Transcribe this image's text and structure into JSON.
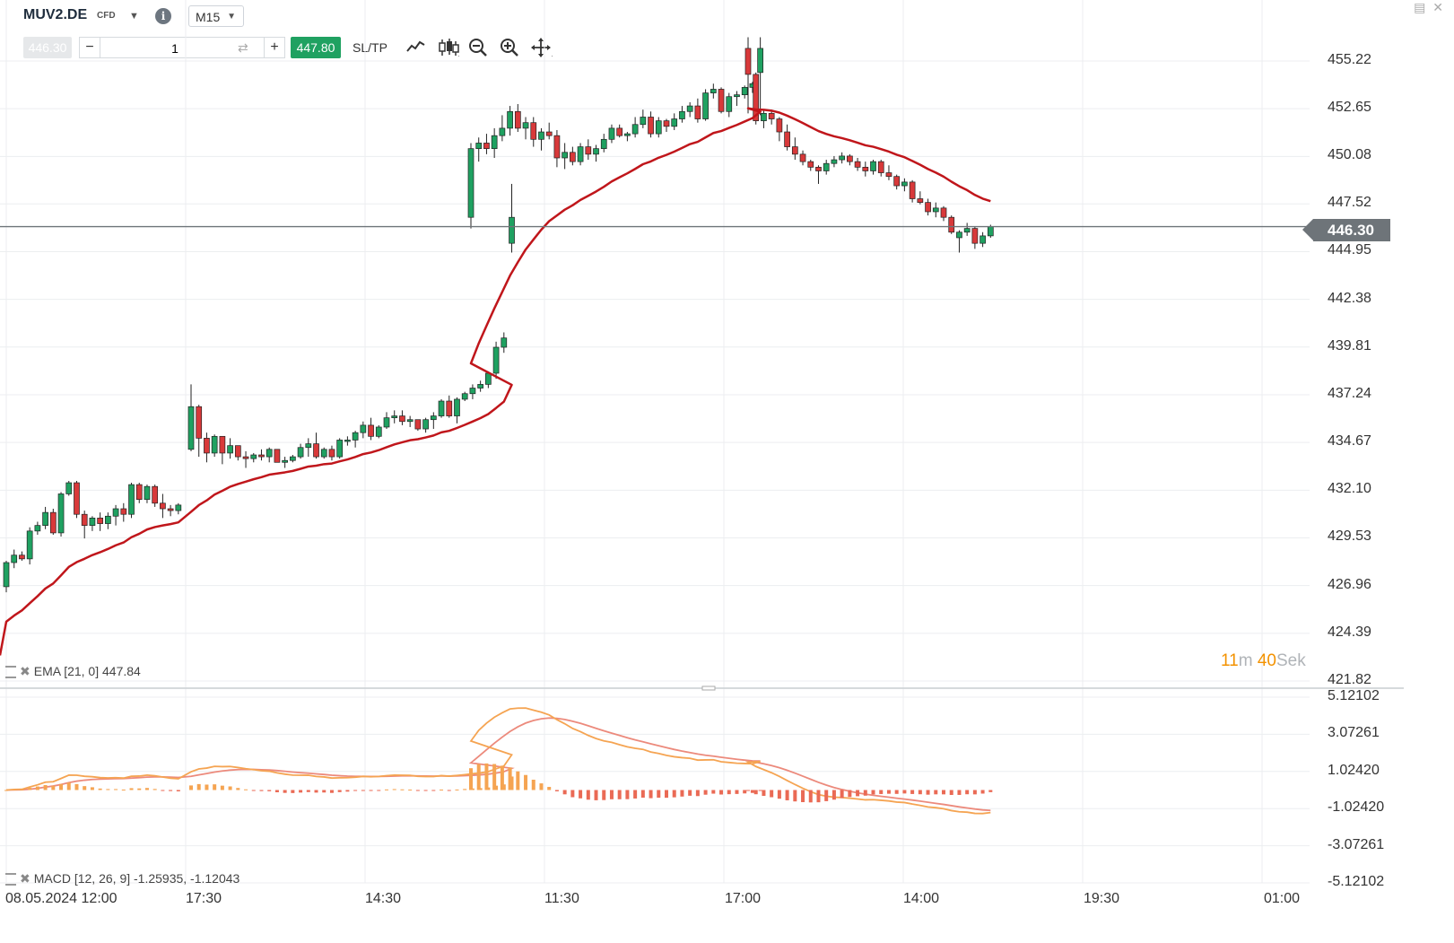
{
  "header": {
    "symbol": "MUV2.DE",
    "instrument_type": "CFD",
    "info_icon_text": "i",
    "timeframe": "M15"
  },
  "order": {
    "sell_price": "446.30",
    "quantity": "1",
    "buy_price": "447.80",
    "sltp_label": "SL/TP"
  },
  "toolbar_icons": [
    "line-chart-icon",
    "candlestick-icon",
    "zoom-out-icon",
    "zoom-in-icon",
    "pan-move-icon"
  ],
  "window_icons": [
    "minimize-icon",
    "close-icon"
  ],
  "colors": {
    "bull": "#1fa161",
    "bear": "#d8393a",
    "ema": "#c0161b",
    "macd_line": "#f5a452",
    "signal_line": "#ec8a7c",
    "hist_pos": "#f5a452",
    "hist_neg": "#ea6a55",
    "current_price": "#6e7479",
    "timer_number": "#f39200"
  },
  "main_panel": {
    "current_price": "446.30",
    "y_axis_ticks": [
      "455.22",
      "452.65",
      "450.08",
      "447.52",
      "444.95",
      "442.38",
      "439.81",
      "437.24",
      "434.67",
      "432.10",
      "429.53",
      "426.96",
      "424.39",
      "421.82"
    ],
    "indicator_label": "EMA [21, 0] 447.84",
    "timer": {
      "minutes": "11",
      "minutes_unit": "m",
      "seconds": "40",
      "seconds_unit": "Sek"
    }
  },
  "macd_panel": {
    "indicator_label": "MACD [12, 26, 9] -1.25935, -1.12043",
    "y_axis_ticks": [
      "5.12102",
      "3.07261",
      "1.02420",
      "-1.02420",
      "-3.07261",
      "-5.12102"
    ]
  },
  "x_axis_labels": [
    "08.05.2024 12:00",
    "17:30",
    "14:30",
    "11:30",
    "17:00",
    "14:00",
    "19:30",
    "01:00"
  ],
  "chart_data": {
    "type": "candlestick",
    "symbol": "MUV2.DE",
    "timeframe": "M15",
    "ylim": [
      421.82,
      456.5
    ],
    "candles_ohlc": [
      [
        426.9,
        428.3,
        426.6,
        428.2
      ],
      [
        428.2,
        428.9,
        427.9,
        428.6
      ],
      [
        428.6,
        428.8,
        428.3,
        428.4
      ],
      [
        428.4,
        430.1,
        428.1,
        429.9
      ],
      [
        429.9,
        430.4,
        429.7,
        430.2
      ],
      [
        430.2,
        431.2,
        430.0,
        430.9
      ],
      [
        430.9,
        431.1,
        429.7,
        429.8
      ],
      [
        429.8,
        432.0,
        429.6,
        431.9
      ],
      [
        431.9,
        432.6,
        431.8,
        432.5
      ],
      [
        432.5,
        432.6,
        430.6,
        430.8
      ],
      [
        430.8,
        431.0,
        429.5,
        430.2
      ],
      [
        430.2,
        430.7,
        429.9,
        430.6
      ],
      [
        430.6,
        430.9,
        429.9,
        430.3
      ],
      [
        430.3,
        430.9,
        430.0,
        430.7
      ],
      [
        430.7,
        431.3,
        430.2,
        431.1
      ],
      [
        431.1,
        431.4,
        430.4,
        430.8
      ],
      [
        430.8,
        432.5,
        430.6,
        432.4
      ],
      [
        432.4,
        432.5,
        431.4,
        431.6
      ],
      [
        431.6,
        432.4,
        431.4,
        432.3
      ],
      [
        432.3,
        432.4,
        431.2,
        431.4
      ],
      [
        431.4,
        431.9,
        430.6,
        431.1
      ],
      [
        431.1,
        431.3,
        430.7,
        431.0
      ],
      [
        431.0,
        431.4,
        430.8,
        431.3
      ],
      [
        434.3,
        437.8,
        434.2,
        436.6
      ],
      [
        436.6,
        436.7,
        433.9,
        434.9
      ],
      [
        434.9,
        435.2,
        433.6,
        434.1
      ],
      [
        434.1,
        435.1,
        433.9,
        435.0
      ],
      [
        435.0,
        435.0,
        433.5,
        434.1
      ],
      [
        434.1,
        434.9,
        433.8,
        434.5
      ],
      [
        434.5,
        434.5,
        433.7,
        433.9
      ],
      [
        433.9,
        434.2,
        433.3,
        433.8
      ],
      [
        433.8,
        434.1,
        433.6,
        434.0
      ],
      [
        434.0,
        434.3,
        433.7,
        433.9
      ],
      [
        433.9,
        434.4,
        433.6,
        434.3
      ],
      [
        434.3,
        434.2,
        433.7,
        433.6
      ],
      [
        433.6,
        433.9,
        433.3,
        433.7
      ],
      [
        433.7,
        434.0,
        433.6,
        433.9
      ],
      [
        433.9,
        434.6,
        433.8,
        434.4
      ],
      [
        434.4,
        434.9,
        433.9,
        434.6
      ],
      [
        434.6,
        435.2,
        433.8,
        433.9
      ],
      [
        433.9,
        434.4,
        433.8,
        434.3
      ],
      [
        434.3,
        434.5,
        433.7,
        433.9
      ],
      [
        433.9,
        434.9,
        433.8,
        434.8
      ],
      [
        434.8,
        435.0,
        434.5,
        434.8
      ],
      [
        434.8,
        435.3,
        434.4,
        435.2
      ],
      [
        435.2,
        435.8,
        434.9,
        435.6
      ],
      [
        435.6,
        436.0,
        434.8,
        435.0
      ],
      [
        435.0,
        435.6,
        434.9,
        435.5
      ],
      [
        435.5,
        436.3,
        435.4,
        436.0
      ],
      [
        436.0,
        436.4,
        435.7,
        436.1
      ],
      [
        436.1,
        436.4,
        435.6,
        435.8
      ],
      [
        435.8,
        436.1,
        435.5,
        435.9
      ],
      [
        435.9,
        435.9,
        435.3,
        435.4
      ],
      [
        435.4,
        436.0,
        435.2,
        435.9
      ],
      [
        435.9,
        436.3,
        435.4,
        436.1
      ],
      [
        436.1,
        437.0,
        436.0,
        436.9
      ],
      [
        436.9,
        437.2,
        436.0,
        436.1
      ],
      [
        436.1,
        437.1,
        435.7,
        437.0
      ],
      [
        437.0,
        437.4,
        436.9,
        437.3
      ],
      [
        437.3,
        437.8,
        437.0,
        437.6
      ],
      [
        437.6,
        438.0,
        437.4,
        437.8
      ],
      [
        437.8,
        438.5,
        437.6,
        438.4
      ],
      [
        438.4,
        440.1,
        438.1,
        439.8
      ],
      [
        439.8,
        440.6,
        439.5,
        440.3
      ],
      [
        445.4,
        448.6,
        444.9,
        446.8
      ],
      [
        446.8,
        450.8,
        446.2,
        450.5
      ],
      [
        450.5,
        451.1,
        449.8,
        450.8
      ],
      [
        450.8,
        451.3,
        450.2,
        450.5
      ],
      [
        450.5,
        451.6,
        450.0,
        451.2
      ],
      [
        451.2,
        452.3,
        450.9,
        451.6
      ],
      [
        451.6,
        452.8,
        451.2,
        452.5
      ],
      [
        452.5,
        452.9,
        451.4,
        451.6
      ],
      [
        451.6,
        452.2,
        451.0,
        451.9
      ],
      [
        451.9,
        452.2,
        450.6,
        451.0
      ],
      [
        451.0,
        451.6,
        450.4,
        451.4
      ],
      [
        451.4,
        451.9,
        451.0,
        451.2
      ],
      [
        451.2,
        451.5,
        449.5,
        450.0
      ],
      [
        450.0,
        450.8,
        449.4,
        450.3
      ],
      [
        450.3,
        450.6,
        449.6,
        449.8
      ],
      [
        449.8,
        450.8,
        449.6,
        450.6
      ],
      [
        450.6,
        451.0,
        449.9,
        450.2
      ],
      [
        450.2,
        450.7,
        449.8,
        450.5
      ],
      [
        450.5,
        451.3,
        450.3,
        451.0
      ],
      [
        451.0,
        451.8,
        450.8,
        451.6
      ],
      [
        451.6,
        451.8,
        451.1,
        451.2
      ],
      [
        451.2,
        451.4,
        450.9,
        451.3
      ],
      [
        451.3,
        452.2,
        451.1,
        451.8
      ],
      [
        451.8,
        452.6,
        451.6,
        452.2
      ],
      [
        452.2,
        452.5,
        451.1,
        451.3
      ],
      [
        451.3,
        452.2,
        451.1,
        452.0
      ],
      [
        452.0,
        452.1,
        451.4,
        451.7
      ],
      [
        451.7,
        452.4,
        451.5,
        452.1
      ],
      [
        452.1,
        452.8,
        451.9,
        452.5
      ],
      [
        452.5,
        453.0,
        452.2,
        452.8
      ],
      [
        452.8,
        453.2,
        451.9,
        452.1
      ],
      [
        452.1,
        453.7,
        452.0,
        453.5
      ],
      [
        453.5,
        454.0,
        453.2,
        453.7
      ],
      [
        453.7,
        453.8,
        452.4,
        452.5
      ],
      [
        452.5,
        453.5,
        452.2,
        453.3
      ],
      [
        453.3,
        453.6,
        452.8,
        453.4
      ],
      [
        453.4,
        453.9,
        453.2,
        453.8
      ],
      [
        453.8,
        454.1,
        453.5,
        454.0
      ],
      [
        454.6,
        456.5,
        452.3,
        455.9
      ],
      [
        455.9,
        456.5,
        452.4,
        454.5
      ],
      [
        454.5,
        454.6,
        451.8,
        452.0
      ],
      [
        452.0,
        452.6,
        451.6,
        452.4
      ],
      [
        452.4,
        452.6,
        451.8,
        452.1
      ],
      [
        452.1,
        452.2,
        450.9,
        451.4
      ],
      [
        451.4,
        451.8,
        450.4,
        450.6
      ],
      [
        450.6,
        451.1,
        449.9,
        450.2
      ],
      [
        450.2,
        450.4,
        449.6,
        449.8
      ],
      [
        449.8,
        449.9,
        449.3,
        449.5
      ],
      [
        449.5,
        449.6,
        448.6,
        449.3
      ],
      [
        449.3,
        449.9,
        449.1,
        449.7
      ],
      [
        449.7,
        450.1,
        449.5,
        449.9
      ],
      [
        449.9,
        450.3,
        449.7,
        450.1
      ],
      [
        450.1,
        450.2,
        449.6,
        449.8
      ],
      [
        449.8,
        450.0,
        449.3,
        449.5
      ],
      [
        449.5,
        449.8,
        449.0,
        449.3
      ],
      [
        449.3,
        449.9,
        449.1,
        449.8
      ],
      [
        449.8,
        449.9,
        449.0,
        449.2
      ],
      [
        449.2,
        449.6,
        448.8,
        449.0
      ],
      [
        449.0,
        449.1,
        448.3,
        448.5
      ],
      [
        448.5,
        448.9,
        448.2,
        448.7
      ],
      [
        448.7,
        448.8,
        447.6,
        447.8
      ],
      [
        447.8,
        448.2,
        447.5,
        447.6
      ],
      [
        447.6,
        447.8,
        446.9,
        447.1
      ],
      [
        447.1,
        447.6,
        446.8,
        447.3
      ],
      [
        447.3,
        447.4,
        446.6,
        446.8
      ],
      [
        446.8,
        446.9,
        445.9,
        446.0
      ],
      [
        445.7,
        446.1,
        444.9,
        446.0
      ],
      [
        446.0,
        446.5,
        445.8,
        446.2
      ],
      [
        446.2,
        446.3,
        445.1,
        445.4
      ],
      [
        445.4,
        446.0,
        445.2,
        445.8
      ],
      [
        445.8,
        446.4,
        445.7,
        446.3
      ]
    ],
    "ema": {
      "name": "EMA [21, 0]",
      "last_value": 447.84
    },
    "macd": {
      "name": "MACD [12, 26, 9]",
      "macd_last": -1.25935,
      "signal_last": -1.12043,
      "ylim": [
        -5.12102,
        5.12102
      ]
    }
  }
}
